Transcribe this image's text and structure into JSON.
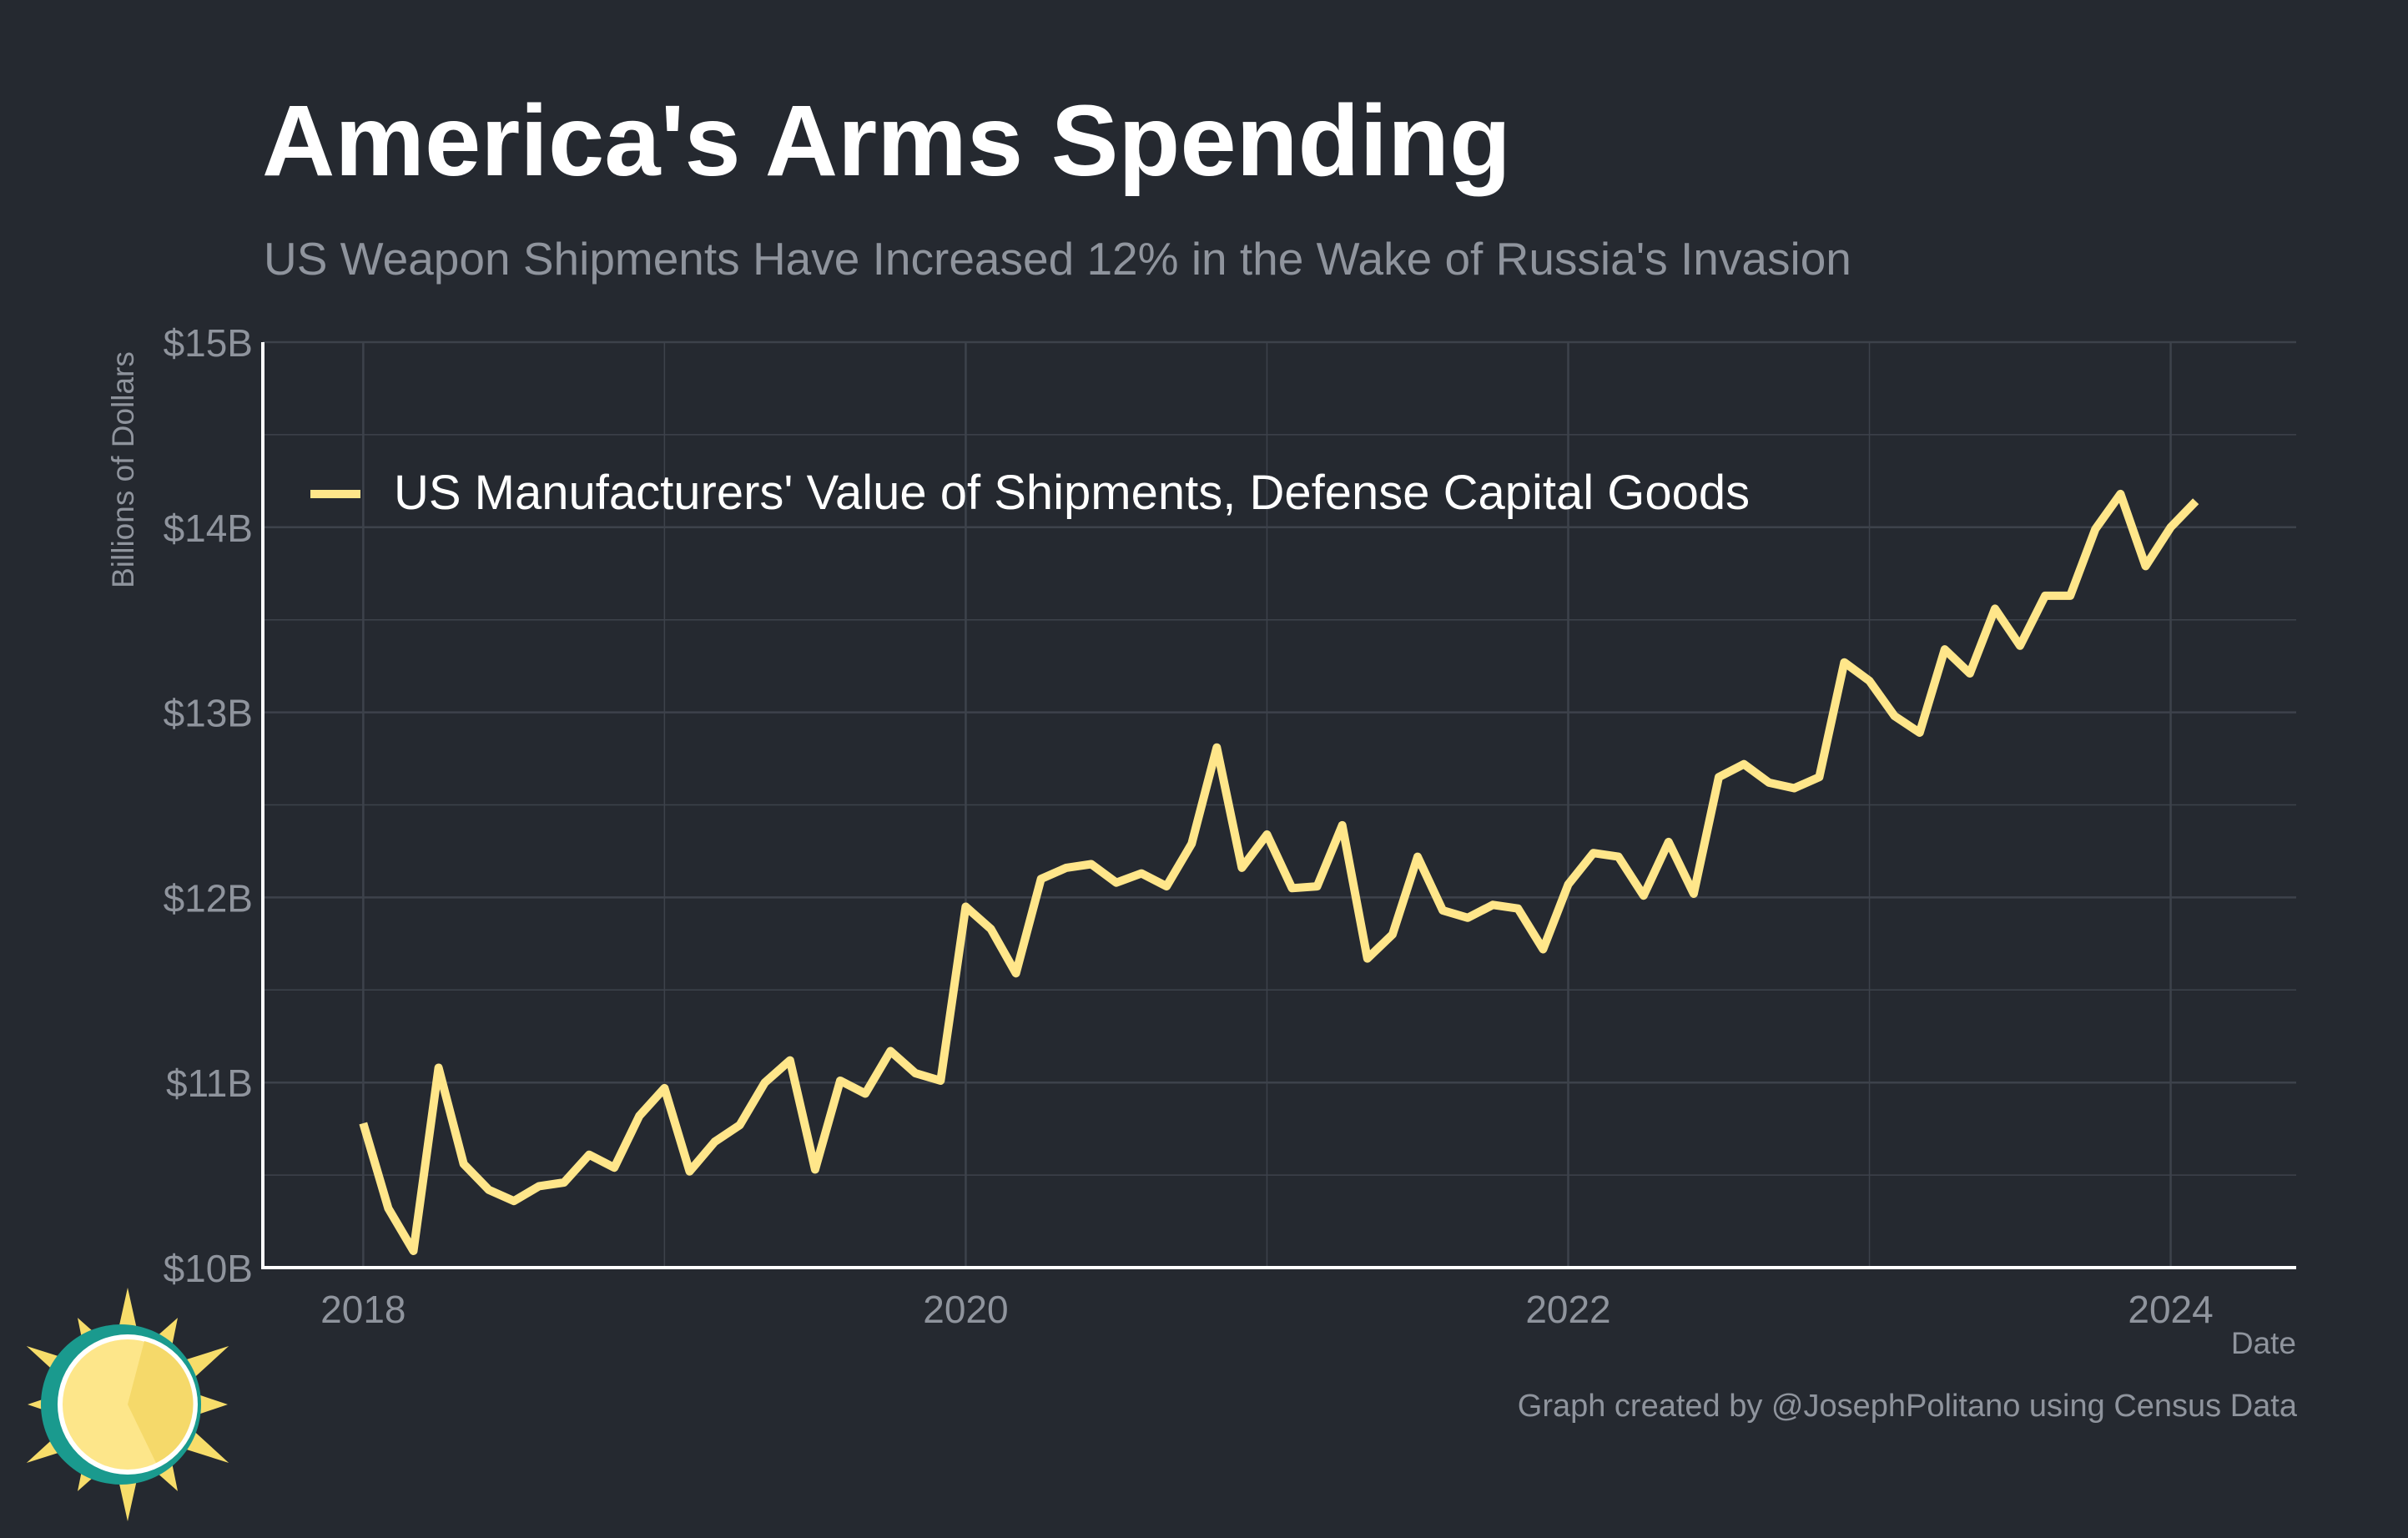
{
  "header": {
    "title": "America's Arms Spending",
    "subtitle": "US Weapon Shipments Have Increased 12% in the Wake of Russia's Invasion"
  },
  "footer": {
    "credit": "Graph created by @JosephPolitano using Census Data"
  },
  "logo": {
    "icon": "sun-logo-icon",
    "colors": {
      "ring": "#1a9a8e",
      "face": "#fde68a",
      "rays": "#f7dd6a"
    }
  },
  "colors": {
    "background": "#252930",
    "grid": "#3d424b",
    "axis": "#ffffff",
    "text_muted": "#8f949d",
    "line": "#ffe68a"
  },
  "chart_data": {
    "type": "line",
    "title": "America's Arms Spending",
    "subtitle": "US Weapon Shipments Have Increased 12% in the Wake of Russia's Invasion",
    "xlabel": "Date",
    "ylabel": "Billions of Dollars",
    "xlim": [
      "2017-09",
      "2024-06"
    ],
    "ylim": [
      10,
      15
    ],
    "x_ticks": [
      {
        "value": "2018-01",
        "label": "2018"
      },
      {
        "value": "2020-01",
        "label": "2020"
      },
      {
        "value": "2022-01",
        "label": "2022"
      },
      {
        "value": "2024-01",
        "label": "2024"
      }
    ],
    "y_ticks": [
      {
        "value": 10,
        "label": "$10B"
      },
      {
        "value": 11,
        "label": "$11B"
      },
      {
        "value": 12,
        "label": "$12B"
      },
      {
        "value": 13,
        "label": "$13B"
      },
      {
        "value": 14,
        "label": "$14B"
      },
      {
        "value": 15,
        "label": "$15B"
      }
    ],
    "grid": true,
    "legend_position": "top-left",
    "series": [
      {
        "name": "US Manufacturers' Value of Shipments, Defense Capital Goods",
        "color": "#ffe68a",
        "x": [
          "2018-01",
          "2018-02",
          "2018-03",
          "2018-04",
          "2018-05",
          "2018-06",
          "2018-07",
          "2018-08",
          "2018-09",
          "2018-10",
          "2018-11",
          "2018-12",
          "2019-01",
          "2019-02",
          "2019-03",
          "2019-04",
          "2019-05",
          "2019-06",
          "2019-07",
          "2019-08",
          "2019-09",
          "2019-10",
          "2019-11",
          "2019-12",
          "2020-01",
          "2020-02",
          "2020-03",
          "2020-04",
          "2020-05",
          "2020-06",
          "2020-07",
          "2020-08",
          "2020-09",
          "2020-10",
          "2020-11",
          "2020-12",
          "2021-01",
          "2021-02",
          "2021-03",
          "2021-04",
          "2021-05",
          "2021-06",
          "2021-07",
          "2021-08",
          "2021-09",
          "2021-10",
          "2021-11",
          "2021-12",
          "2022-01",
          "2022-02",
          "2022-03",
          "2022-04",
          "2022-05",
          "2022-06",
          "2022-07",
          "2022-08",
          "2022-09",
          "2022-10",
          "2022-11",
          "2022-12",
          "2023-01",
          "2023-02",
          "2023-03",
          "2023-04",
          "2023-05",
          "2023-06",
          "2023-07",
          "2023-08",
          "2023-09",
          "2023-10",
          "2023-11",
          "2023-12",
          "2024-01",
          "2024-02"
        ],
        "values": [
          10.78,
          10.32,
          10.09,
          11.08,
          10.56,
          10.42,
          10.36,
          10.44,
          10.46,
          10.61,
          10.54,
          10.82,
          10.97,
          10.52,
          10.68,
          10.77,
          11.0,
          11.12,
          10.53,
          11.01,
          10.94,
          11.17,
          11.05,
          11.01,
          11.95,
          11.83,
          11.59,
          12.1,
          12.16,
          12.18,
          12.08,
          12.13,
          12.06,
          12.29,
          12.81,
          12.16,
          12.34,
          12.05,
          12.06,
          12.39,
          11.67,
          11.8,
          12.22,
          11.93,
          11.89,
          11.96,
          11.94,
          11.72,
          12.07,
          12.24,
          12.22,
          12.01,
          12.3,
          12.02,
          12.65,
          12.72,
          12.62,
          12.59,
          12.65,
          13.27,
          13.17,
          12.98,
          12.89,
          13.34,
          13.21,
          13.56,
          13.36,
          13.63,
          13.63,
          13.99,
          14.18,
          13.79,
          14.0,
          14.14
        ]
      }
    ]
  }
}
